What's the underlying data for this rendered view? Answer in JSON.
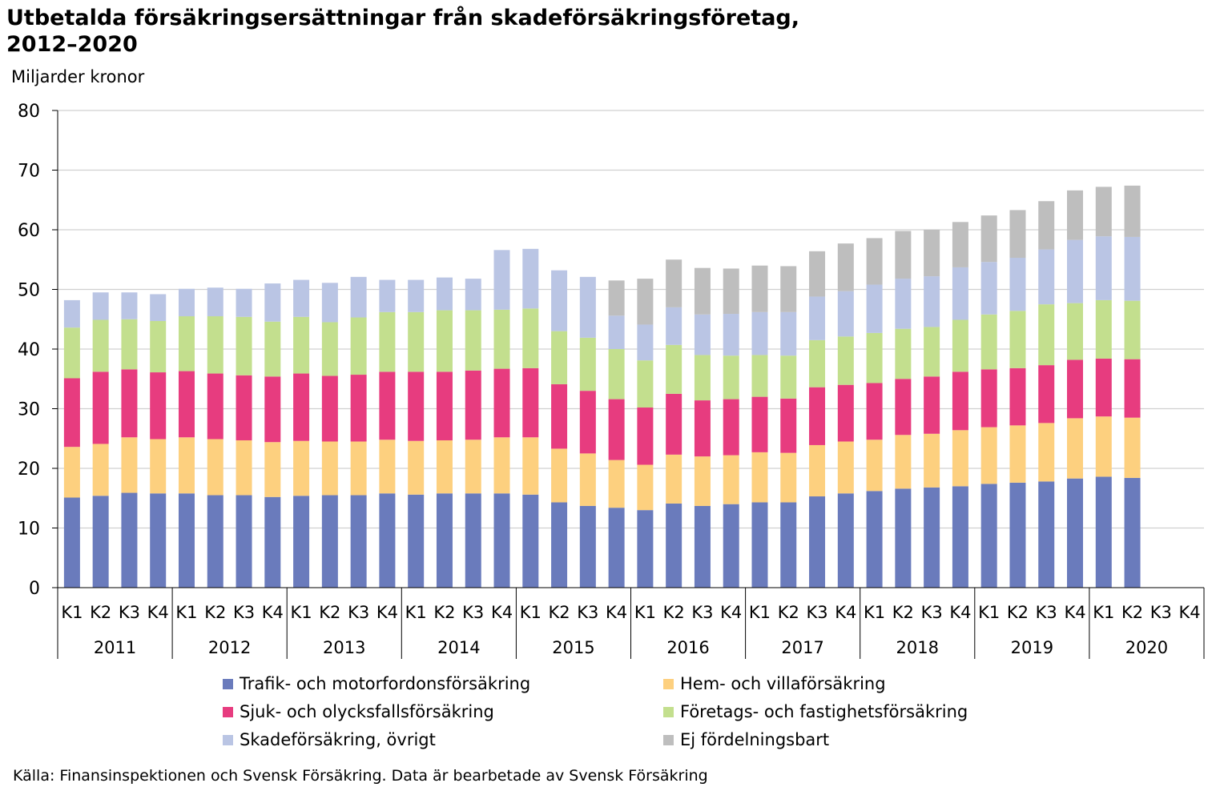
{
  "title_line1": "Utbetalda försäkringsersättningar från skadeförsäkringsföretag,",
  "title_line2": "2012–2020",
  "source": "Källa: Finansinspektionen och Svensk Försäkring. Data är bearbetade av Svensk Försäkring",
  "chart_data": {
    "type": "bar",
    "stacked": true,
    "ylabel": "Miljarder kronor",
    "ylim": [
      0,
      80
    ],
    "yticks": [
      0,
      10,
      20,
      30,
      40,
      50,
      60,
      70,
      80
    ],
    "grid": true,
    "legend_position": "bottom",
    "quarters": [
      "K1",
      "K2",
      "K3",
      "K4"
    ],
    "years": [
      "2011",
      "2012",
      "2013",
      "2014",
      "2015",
      "2016",
      "2017",
      "2018",
      "2019",
      "2020"
    ],
    "categories": [
      "2011 K1",
      "2011 K2",
      "2011 K3",
      "2011 K4",
      "2012 K1",
      "2012 K2",
      "2012 K3",
      "2012 K4",
      "2013 K1",
      "2013 K2",
      "2013 K3",
      "2013 K4",
      "2014 K1",
      "2014 K2",
      "2014 K3",
      "2014 K4",
      "2015 K1",
      "2015 K2",
      "2015 K3",
      "2015 K4",
      "2016 K1",
      "2016 K2",
      "2016 K3",
      "2016 K4",
      "2017 K1",
      "2017 K2",
      "2017 K3",
      "2017 K4",
      "2018 K1",
      "2018 K2",
      "2018 K3",
      "2018 K4",
      "2019 K1",
      "2019 K2",
      "2019 K3",
      "2019 K4",
      "2020 K1",
      "2020 K2",
      "2020 K3",
      "2020 K4"
    ],
    "series": [
      {
        "name": "Trafik- och motorfordonsförsäkring",
        "color": "#6a7bbc",
        "values": [
          15.1,
          15.4,
          15.9,
          15.8,
          15.8,
          15.5,
          15.5,
          15.2,
          15.4,
          15.5,
          15.5,
          15.8,
          15.6,
          15.8,
          15.8,
          15.8,
          15.6,
          14.3,
          13.7,
          13.4,
          13.0,
          14.1,
          13.7,
          14.0,
          14.3,
          14.3,
          15.3,
          15.8,
          16.2,
          16.6,
          16.8,
          17.0,
          17.4,
          17.6,
          17.8,
          18.3,
          18.6,
          18.4,
          null,
          null
        ]
      },
      {
        "name": "Hem- och villaförsäkring",
        "color": "#fdd07f",
        "values": [
          8.5,
          8.7,
          9.3,
          9.1,
          9.4,
          9.4,
          9.2,
          9.2,
          9.2,
          9.0,
          9.0,
          9.0,
          9.0,
          8.9,
          9.0,
          9.4,
          9.6,
          9.0,
          8.8,
          8.0,
          7.6,
          8.2,
          8.3,
          8.2,
          8.4,
          8.3,
          8.6,
          8.7,
          8.6,
          9.0,
          9.0,
          9.4,
          9.5,
          9.6,
          9.8,
          10.1,
          10.1,
          10.1,
          null,
          null
        ]
      },
      {
        "name": "Sjuk- och olycksfallsförsäkring",
        "color": "#e73c7f",
        "values": [
          11.5,
          12.1,
          11.4,
          11.2,
          11.1,
          11.0,
          10.9,
          11.0,
          11.3,
          11.0,
          11.2,
          11.4,
          11.6,
          11.5,
          11.6,
          11.5,
          11.6,
          10.8,
          10.5,
          10.2,
          9.6,
          10.2,
          9.4,
          9.4,
          9.3,
          9.1,
          9.7,
          9.5,
          9.5,
          9.4,
          9.6,
          9.8,
          9.7,
          9.6,
          9.7,
          9.8,
          9.7,
          9.8,
          null,
          null
        ]
      },
      {
        "name": "Företags- och fastighetsförsäkring",
        "color": "#c3df8e",
        "values": [
          8.5,
          8.7,
          8.4,
          8.6,
          9.2,
          9.6,
          9.8,
          9.2,
          9.5,
          9.0,
          9.6,
          10.0,
          10.0,
          10.3,
          10.1,
          9.9,
          10.0,
          8.9,
          8.9,
          8.4,
          7.9,
          8.2,
          7.6,
          7.3,
          7.0,
          7.2,
          7.9,
          8.1,
          8.4,
          8.4,
          8.3,
          8.7,
          9.2,
          9.6,
          10.2,
          9.5,
          9.8,
          9.8,
          null,
          null
        ]
      },
      {
        "name": "Skadeförsäkring, övrigt",
        "color": "#bac5e4",
        "values": [
          4.6,
          4.6,
          4.5,
          4.5,
          4.6,
          4.8,
          4.7,
          6.4,
          6.2,
          6.6,
          6.8,
          5.4,
          5.4,
          5.5,
          5.3,
          10.0,
          10.0,
          10.2,
          10.2,
          5.6,
          6.0,
          6.3,
          6.8,
          7.0,
          7.2,
          7.3,
          7.3,
          7.6,
          8.1,
          8.4,
          8.5,
          8.8,
          8.8,
          8.9,
          9.2,
          10.6,
          10.7,
          10.7,
          null,
          null
        ]
      },
      {
        "name": "Ej fördelningsbart",
        "color": "#bebebe",
        "values": [
          0,
          0,
          0,
          0,
          0,
          0,
          0,
          0,
          0,
          0,
          0,
          0,
          0,
          0,
          0,
          0,
          0,
          0,
          0,
          5.9,
          7.7,
          8.0,
          7.8,
          7.6,
          7.8,
          7.7,
          7.6,
          8.0,
          7.8,
          8.0,
          7.8,
          7.6,
          7.8,
          8.0,
          8.1,
          8.3,
          8.3,
          8.6,
          null,
          null
        ]
      }
    ]
  }
}
